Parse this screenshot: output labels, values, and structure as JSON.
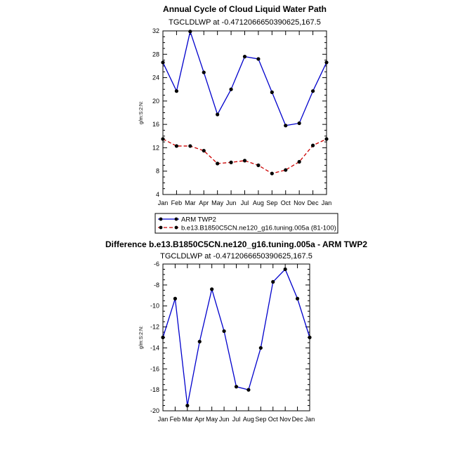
{
  "chart_data": [
    {
      "type": "line",
      "title": "Annual Cycle of Cloud Liquid Water Path",
      "subtitle": "TGCLDLWP at -0.4712066650390625,167.5",
      "xlabel": "",
      "ylabel": "g/m:S:2:N:",
      "categories": [
        "Jan",
        "Feb",
        "Mar",
        "Apr",
        "May",
        "Jun",
        "Jul",
        "Aug",
        "Sep",
        "Oct",
        "Nov",
        "Dec",
        "Jan"
      ],
      "ylim": [
        4,
        32
      ],
      "yticks": [
        4,
        8,
        12,
        16,
        20,
        24,
        28,
        32
      ],
      "grid": false,
      "legend": "bottom",
      "series": [
        {
          "name": "ARM TWP2",
          "color": "#0000cc",
          "dash": "solid",
          "values": [
            26.6,
            21.7,
            31.9,
            24.9,
            17.7,
            22.0,
            27.6,
            27.2,
            21.5,
            15.8,
            16.2,
            21.7,
            26.6
          ]
        },
        {
          "name": "b.e13.B1850C5CN.ne120_g16.tuning.005a (81-100)",
          "color": "#cc0000",
          "dash": "dashed",
          "values": [
            13.5,
            12.3,
            12.3,
            11.5,
            9.3,
            9.5,
            9.8,
            9.0,
            7.6,
            8.2,
            9.6,
            12.4,
            13.5
          ]
        }
      ]
    },
    {
      "type": "line",
      "title": "Difference b.e13.B1850C5CN.ne120_g16.tuning.005a - ARM TWP2",
      "subtitle": "TGCLDLWP at -0.4712066650390625,167.5",
      "xlabel": "",
      "ylabel": "g/m:S:2:N:",
      "categories": [
        "Jan",
        "Feb",
        "Mar",
        "Apr",
        "May",
        "Jun",
        "Jul",
        "Aug",
        "Sep",
        "Oct",
        "Nov",
        "Dec",
        "Jan"
      ],
      "ylim": [
        -20,
        -6
      ],
      "yticks": [
        -20,
        -18,
        -16,
        -14,
        -12,
        -10,
        -8,
        -6
      ],
      "grid": false,
      "legend": "none",
      "series": [
        {
          "color": "#0000cc",
          "dash": "solid",
          "values": [
            -13.0,
            -9.3,
            -19.5,
            -13.4,
            -8.4,
            -12.4,
            -17.7,
            -18.0,
            -14.0,
            -7.7,
            -6.5,
            -9.3,
            -13.0
          ]
        }
      ]
    }
  ]
}
